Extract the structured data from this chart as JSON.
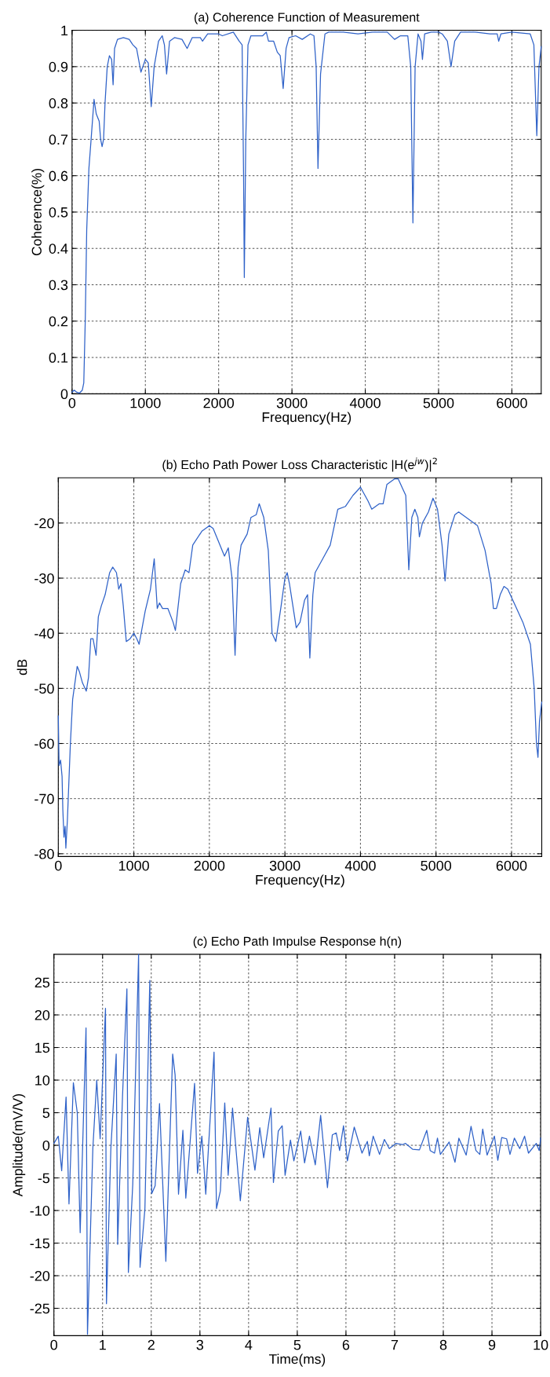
{
  "chart_data": [
    {
      "type": "line",
      "title": "(a) Coherence Function of Measurement",
      "xlabel": "Frequency(Hz)",
      "ylabel": "Coherence(%)",
      "grid": true,
      "xlim": [
        0,
        6400
      ],
      "ylim": [
        0,
        1
      ],
      "xticks": [
        0,
        1000,
        2000,
        3000,
        4000,
        5000,
        6000
      ],
      "yticks": [
        0,
        0.1,
        0.2,
        0.3,
        0.4,
        0.5,
        0.6,
        0.7,
        0.8,
        0.9,
        1
      ],
      "series": [
        {
          "color": "#2f62c8",
          "x": [
            0,
            30,
            60,
            100,
            140,
            160,
            180,
            200,
            230,
            260,
            300,
            330,
            370,
            390,
            410,
            430,
            450,
            480,
            510,
            540,
            560,
            580,
            620,
            700,
            780,
            830,
            880,
            940,
            1000,
            1040,
            1080,
            1120,
            1180,
            1230,
            1260,
            1290,
            1330,
            1400,
            1500,
            1570,
            1640,
            1750,
            1780,
            1850,
            2000,
            2050,
            2200,
            2280,
            2320,
            2340,
            2350,
            2370,
            2400,
            2440,
            2490,
            2600,
            2650,
            2680,
            2750,
            2800,
            2840,
            2880,
            2920,
            2960,
            3050,
            3140,
            3250,
            3300,
            3330,
            3355,
            3390,
            3450,
            3500,
            3700,
            3900,
            4100,
            4300,
            4400,
            4480,
            4580,
            4620,
            4650,
            4680,
            4720,
            4760,
            4780,
            4810,
            4900,
            5000,
            5050,
            5120,
            5170,
            5220,
            5300,
            5500,
            5700,
            5800,
            5820,
            5850,
            6000,
            6250,
            6300,
            6340,
            6370,
            6400
          ],
          "values": [
            0.005,
            0.01,
            0.005,
            0.002,
            0.01,
            0.03,
            0.2,
            0.45,
            0.62,
            0.7,
            0.81,
            0.77,
            0.75,
            0.7,
            0.68,
            0.7,
            0.8,
            0.9,
            0.93,
            0.92,
            0.85,
            0.95,
            0.975,
            0.98,
            0.975,
            0.96,
            0.95,
            0.885,
            0.92,
            0.91,
            0.79,
            0.9,
            0.97,
            0.985,
            0.96,
            0.88,
            0.97,
            0.98,
            0.975,
            0.95,
            0.98,
            0.98,
            0.97,
            0.99,
            0.99,
            0.985,
            0.995,
            0.97,
            0.96,
            0.6,
            0.32,
            0.7,
            0.96,
            0.985,
            0.985,
            0.985,
            0.995,
            0.97,
            0.97,
            0.94,
            0.93,
            0.84,
            0.95,
            0.98,
            0.985,
            0.975,
            0.99,
            0.985,
            0.9,
            0.62,
            0.88,
            0.99,
            0.995,
            0.995,
            0.99,
            0.995,
            0.995,
            0.975,
            0.985,
            0.985,
            0.9,
            0.47,
            0.9,
            0.99,
            0.97,
            0.92,
            0.99,
            0.995,
            0.995,
            0.99,
            0.97,
            0.9,
            0.97,
            0.995,
            0.995,
            0.99,
            0.99,
            0.97,
            0.99,
            0.995,
            0.99,
            0.96,
            0.71,
            0.9,
            0.955
          ]
        }
      ]
    },
    {
      "type": "line",
      "title": "(b) Echo Path Power Loss Characteristic |H(e$^{jw}$)|$^{2}$",
      "xlabel": "Frequency(Hz)",
      "ylabel": "dB",
      "grid": true,
      "xlim": [
        0,
        6400
      ],
      "ylim": [
        -80.5,
        -11.8
      ],
      "xticks": [
        0,
        1000,
        2000,
        3000,
        4000,
        5000,
        6000
      ],
      "yticks": [
        -80,
        -70,
        -60,
        -50,
        -40,
        -30,
        -20
      ],
      "series": [
        {
          "color": "#2f62c8",
          "x": [
            0,
            10,
            30,
            50,
            60,
            75,
            90,
            100,
            120,
            160,
            190,
            230,
            250,
            280,
            320,
            370,
            400,
            430,
            460,
            500,
            530,
            570,
            620,
            680,
            720,
            770,
            800,
            830,
            860,
            900,
            950,
            1000,
            1040,
            1070,
            1150,
            1220,
            1270,
            1310,
            1340,
            1380,
            1450,
            1520,
            1550,
            1620,
            1680,
            1730,
            1780,
            1900,
            2000,
            2050,
            2200,
            2250,
            2300,
            2340,
            2380,
            2420,
            2500,
            2550,
            2620,
            2660,
            2720,
            2780,
            2830,
            2880,
            2950,
            3000,
            3030,
            3060,
            3150,
            3200,
            3260,
            3300,
            3330,
            3370,
            3400,
            3500,
            3600,
            3700,
            3800,
            3900,
            4000,
            4100,
            4150,
            4250,
            4300,
            4350,
            4450,
            4500,
            4600,
            4640,
            4680,
            4720,
            4760,
            4780,
            4820,
            4900,
            4960,
            5020,
            5080,
            5120,
            5170,
            5250,
            5300,
            5400,
            5550,
            5650,
            5730,
            5760,
            5800,
            5850,
            5900,
            5950,
            6050,
            6150,
            6250,
            6300,
            6330,
            6350,
            6370,
            6400
          ],
          "values": [
            -55,
            -64,
            -63,
            -66,
            -72,
            -77,
            -75,
            -79,
            -74,
            -60,
            -52,
            -48,
            -46,
            -47,
            -49,
            -50.5,
            -48,
            -41,
            -41,
            -44,
            -37,
            -35,
            -33,
            -29,
            -28,
            -29,
            -32,
            -31,
            -35,
            -41.5,
            -41,
            -40,
            -41,
            -42,
            -36,
            -32,
            -26.5,
            -35.5,
            -34.5,
            -35.5,
            -35.5,
            -38,
            -39.5,
            -31,
            -28.5,
            -29,
            -24,
            -21.5,
            -20.5,
            -21,
            -26,
            -24.5,
            -30,
            -44,
            -28,
            -24,
            -22,
            -19,
            -18.5,
            -16.5,
            -19,
            -25,
            -40,
            -41.5,
            -35,
            -30,
            -29,
            -31,
            -39,
            -38,
            -34,
            -33,
            -44.5,
            -33,
            -29,
            -26.5,
            -24,
            -17.5,
            -17,
            -15,
            -13.5,
            -16,
            -17.5,
            -16.5,
            -16.5,
            -13,
            -12,
            -12,
            -15,
            -28.5,
            -19,
            -17.5,
            -19,
            -22.5,
            -20,
            -18,
            -15.5,
            -17.5,
            -24,
            -30.5,
            -22,
            -18.5,
            -18,
            -19,
            -20.5,
            -25,
            -31,
            -35.5,
            -35.5,
            -33,
            -31.5,
            -32,
            -35,
            -38,
            -42,
            -50,
            -60,
            -62.5,
            -56,
            -52.5
          ]
        }
      ]
    },
    {
      "type": "line",
      "title": "(c) Echo Path Impulse Response h(n)",
      "xlabel": "Time(ms)",
      "ylabel": "Amplitude(mV/V)",
      "grid": true,
      "xlim": [
        0,
        10
      ],
      "ylim": [
        -29.2,
        29.3
      ],
      "xticks": [
        0,
        1,
        2,
        3,
        4,
        5,
        6,
        7,
        8,
        9,
        10
      ],
      "yticks": [
        -25,
        -20,
        -15,
        -10,
        -5,
        0,
        5,
        10,
        15,
        20,
        25
      ],
      "series": [
        {
          "color": "#2f62c8",
          "x": [
            0,
            0.09,
            0.16,
            0.25,
            0.31,
            0.4,
            0.48,
            0.54,
            0.66,
            0.69,
            0.8,
            0.88,
            0.95,
            1.0,
            1.06,
            1.08,
            1.17,
            1.28,
            1.31,
            1.41,
            1.5,
            1.53,
            1.62,
            1.74,
            1.77,
            1.87,
            1.97,
            2.01,
            2.08,
            2.17,
            2.3,
            2.44,
            2.49,
            2.56,
            2.65,
            2.71,
            2.89,
            2.95,
            3.04,
            3.12,
            3.29,
            3.34,
            3.42,
            3.51,
            3.58,
            3.67,
            3.83,
            3.98,
            4.13,
            4.23,
            4.31,
            4.46,
            4.51,
            4.61,
            4.69,
            4.75,
            4.86,
            4.93,
            5.07,
            5.15,
            5.25,
            5.37,
            5.48,
            5.62,
            5.72,
            5.8,
            5.87,
            5.95,
            6.03,
            6.17,
            6.33,
            6.44,
            6.48,
            6.56,
            6.69,
            6.79,
            6.89,
            7.03,
            7.16,
            7.22,
            7.37,
            7.51,
            7.66,
            7.73,
            7.82,
            7.88,
            7.94,
            8.12,
            8.24,
            8.32,
            8.47,
            8.57,
            8.67,
            8.75,
            8.81,
            8.9,
            9.05,
            9.12,
            9.2,
            9.3,
            9.37,
            9.46,
            9.57,
            9.67,
            9.75,
            9.91,
            9.97,
            10
          ],
          "values": [
            0.3,
            1.4,
            -3.9,
            7.4,
            -9,
            9.6,
            5,
            -13.4,
            18,
            -29,
            -0.5,
            10,
            1,
            10,
            21,
            -24.3,
            -0.5,
            14,
            -15.2,
            7.6,
            24,
            -19.5,
            -6,
            29.3,
            -18.7,
            -9.7,
            25.3,
            -7.4,
            -6.2,
            6.4,
            -17.8,
            14,
            10.8,
            -7.5,
            2.3,
            -8.1,
            9.5,
            -4.3,
            1.4,
            -7.5,
            14.3,
            -9.7,
            -7,
            6.5,
            -4.6,
            5.7,
            -8.5,
            4.3,
            -3.8,
            2.7,
            -1.9,
            5.7,
            -5.7,
            2.2,
            3,
            -4.6,
            0.8,
            -2.4,
            2.2,
            -2.7,
            1.4,
            -3,
            4.6,
            -6.5,
            1.6,
            1.9,
            -0.8,
            3,
            -2.4,
            2.8,
            -1.2,
            0.6,
            -1.6,
            1.4,
            -1.4,
            0.9,
            -0.5,
            0.3,
            0.1,
            0.3,
            -0.6,
            -0.7,
            2.3,
            -0.8,
            -1.2,
            1.1,
            -1.4,
            0.5,
            -2.6,
            1.1,
            -1.5,
            2.9,
            -0.8,
            -1.4,
            2.5,
            -1.5,
            1.4,
            -2.3,
            1.2,
            1,
            -1.4,
            1.1,
            -0.5,
            1.4,
            -1.2,
            0.3,
            -0.8,
            1.1
          ]
        }
      ]
    }
  ]
}
